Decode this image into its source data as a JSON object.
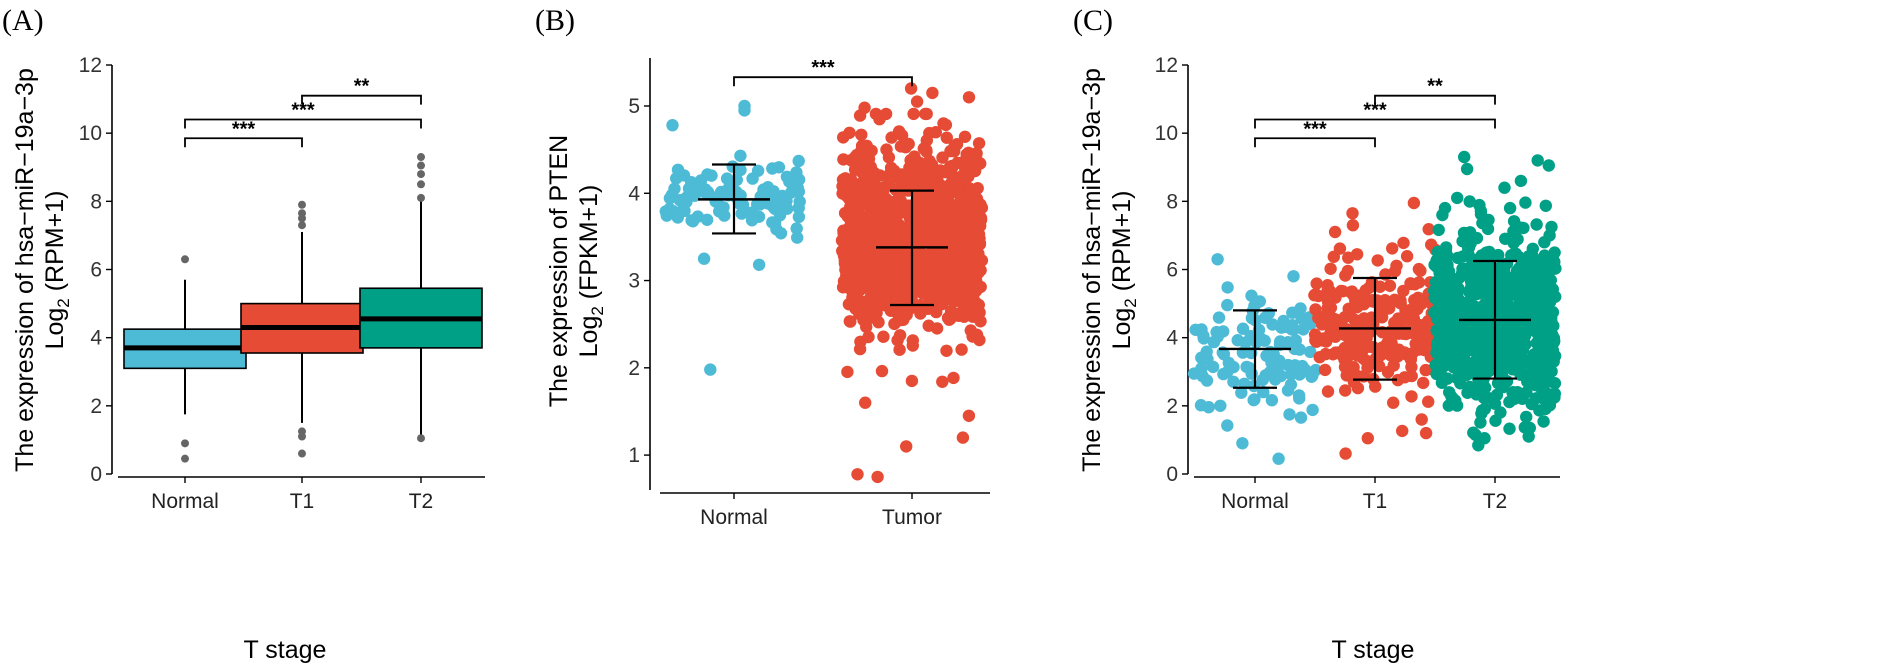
{
  "colors": {
    "normal": "#4DBBD5",
    "t1": "#E64B35",
    "tumor": "#E64B35",
    "t2": "#00A087",
    "outlier": "#666666"
  },
  "chart_data": [
    {
      "panel": "(A)",
      "type": "box",
      "categories": [
        "Normal",
        "T1",
        "T2"
      ],
      "xlabel": "T stage",
      "ylabel": "The expression of hsa−miR−19a−3p",
      "ylabel2_prefix": "Log",
      "ylabel2_sub": "2",
      "ylabel2_suffix": " (RPM+1)",
      "ylim": [
        0,
        12
      ],
      "yticks": [
        0,
        2,
        4,
        6,
        8,
        10,
        12
      ],
      "boxes": [
        {
          "category": "Normal",
          "whisker_low": 1.75,
          "q1": 3.1,
          "median": 3.7,
          "q3": 4.25,
          "whisker_high": 5.7,
          "outliers": [
            0.45,
            0.9,
            6.3
          ]
        },
        {
          "category": "T1",
          "whisker_low": 1.5,
          "q1": 3.55,
          "median": 4.3,
          "q3": 5.0,
          "whisker_high": 7.1,
          "outliers": [
            0.6,
            1.1,
            1.25,
            7.3,
            7.5,
            7.65,
            7.9
          ]
        },
        {
          "category": "T2",
          "whisker_low": 1.1,
          "q1": 3.7,
          "median": 4.55,
          "q3": 5.45,
          "whisker_high": 8.0,
          "outliers": [
            1.05,
            8.1,
            8.5,
            8.8,
            9.05,
            9.3
          ]
        }
      ],
      "significance": [
        {
          "from": "Normal",
          "to": "T1",
          "label": "***",
          "y": 9.85
        },
        {
          "from": "Normal",
          "to": "T2",
          "label": "***",
          "y": 10.4
        },
        {
          "from": "T1",
          "to": "T2",
          "label": "**",
          "y": 11.1
        }
      ]
    },
    {
      "panel": "(B)",
      "type": "scatter",
      "categories": [
        "Normal",
        "Tumor"
      ],
      "xlabel": "",
      "ylabel": "The expression of PTEN",
      "ylabel2_prefix": "Log",
      "ylabel2_sub": "2",
      "ylabel2_suffix": " (FPKM+1)",
      "ylim": [
        0.6,
        5.55
      ],
      "yticks": [
        1,
        2,
        3,
        4,
        5
      ],
      "groups": [
        {
          "category": "Normal",
          "mean": 3.93,
          "sd_low": 3.54,
          "sd_high": 4.33,
          "center": 3.93,
          "spread": 0.2,
          "n": 110,
          "extra_points": [
            1.98,
            5.0,
            4.95,
            4.78,
            3.18,
            3.25
          ]
        },
        {
          "category": "Tumor",
          "mean": 3.38,
          "sd_low": 2.72,
          "sd_high": 4.03,
          "center": 3.45,
          "spread": 0.55,
          "n": 1000,
          "extra_points": [
            0.75,
            0.78,
            1.1,
            1.2,
            1.45,
            1.6,
            1.85,
            5.1,
            5.15,
            5.2,
            5.05,
            4.98,
            4.7
          ]
        }
      ],
      "significance": [
        {
          "from": "Normal",
          "to": "Tumor",
          "label": "***",
          "y": 5.33
        }
      ]
    },
    {
      "panel": "(C)",
      "type": "scatter",
      "categories": [
        "Normal",
        "T1",
        "T2"
      ],
      "xlabel": "T stage",
      "ylabel": "The expression of hsa−miR−19a−3p",
      "ylabel2_prefix": "Log",
      "ylabel2_sub": "2",
      "ylabel2_suffix": " (RPM+1)",
      "ylim": [
        0,
        12
      ],
      "yticks": [
        0,
        2,
        4,
        6,
        8,
        10,
        12
      ],
      "groups": [
        {
          "category": "Normal",
          "mean": 3.67,
          "sd_low": 2.53,
          "sd_high": 4.8,
          "center": 3.67,
          "spread": 0.8,
          "n": 110,
          "extra_points": [
            0.45,
            0.9,
            1.75,
            6.3,
            5.8
          ]
        },
        {
          "category": "T1",
          "mean": 4.27,
          "sd_low": 2.77,
          "sd_high": 5.75,
          "center": 4.27,
          "spread": 1.0,
          "n": 250,
          "extra_points": [
            0.6,
            1.05,
            1.2,
            1.6,
            7.65,
            7.95,
            7.3,
            7.1
          ]
        },
        {
          "category": "T2",
          "mean": 4.52,
          "sd_low": 2.8,
          "sd_high": 6.25,
          "center": 4.6,
          "spread": 1.25,
          "n": 750,
          "extra_points": [
            1.05,
            1.1,
            1.35,
            8.6,
            9.2,
            9.3,
            8.95,
            9.05,
            8.4,
            8.1,
            7.8
          ]
        }
      ],
      "significance": [
        {
          "from": "Normal",
          "to": "T1",
          "label": "***",
          "y": 9.85
        },
        {
          "from": "Normal",
          "to": "T2",
          "label": "***",
          "y": 10.4
        },
        {
          "from": "T1",
          "to": "T2",
          "label": "**",
          "y": 11.1
        }
      ]
    }
  ]
}
